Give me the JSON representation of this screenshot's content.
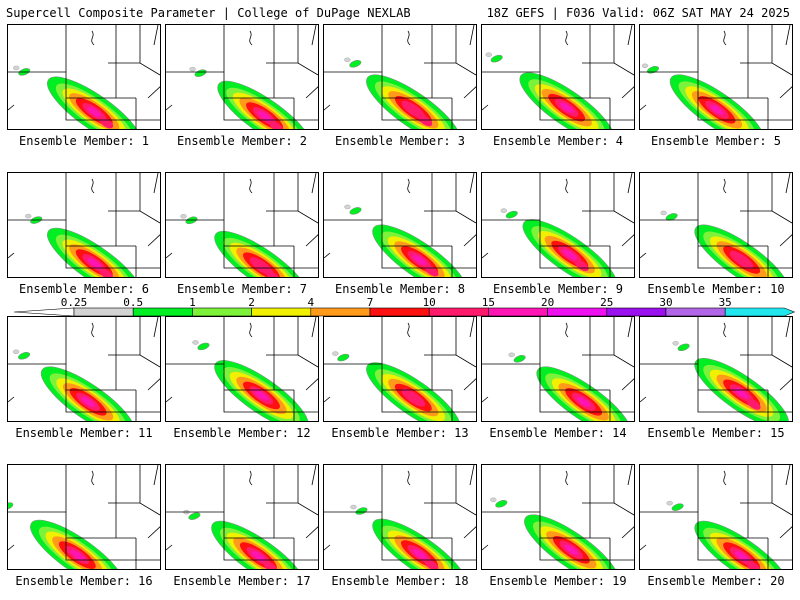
{
  "header": {
    "left_title": "Supercell Composite Parameter | College of DuPage NEXLAB",
    "right_title": "18Z GEFS | F036 Valid: 06Z SAT MAY 24 2025"
  },
  "members_label_prefix": "Ensemble Member: ",
  "members": [
    {
      "label": "Ensemble Member: 1",
      "centroid": [
        0.56,
        0.82
      ],
      "core": 4,
      "cores": 2
    },
    {
      "label": "Ensemble Member: 2",
      "centroid": [
        0.64,
        0.86
      ],
      "core": 4,
      "cores": 2
    },
    {
      "label": "Ensemble Member: 3",
      "centroid": [
        0.58,
        0.8
      ],
      "core": 3,
      "cores": 2
    },
    {
      "label": "Ensemble Member: 4",
      "centroid": [
        0.55,
        0.78
      ],
      "core": 4,
      "cores": 1
    },
    {
      "label": "Ensemble Member: 5",
      "centroid": [
        0.5,
        0.8
      ],
      "core": 4,
      "cores": 1
    },
    {
      "label": "Ensemble Member: 6",
      "centroid": [
        0.56,
        0.85
      ],
      "core": 4,
      "cores": 2
    },
    {
      "label": "Ensemble Member: 7",
      "centroid": [
        0.62,
        0.88
      ],
      "core": 3,
      "cores": 2
    },
    {
      "label": "Ensemble Member: 8",
      "centroid": [
        0.62,
        0.82
      ],
      "core": 4,
      "cores": 2
    },
    {
      "label": "Ensemble Member: 9",
      "centroid": [
        0.57,
        0.77
      ],
      "core": 4,
      "cores": 2
    },
    {
      "label": "Ensemble Member: 10",
      "centroid": [
        0.66,
        0.82
      ],
      "core": 3,
      "cores": 1
    },
    {
      "label": "Ensemble Member: 11",
      "centroid": [
        0.52,
        0.8
      ],
      "core": 4,
      "cores": 1
    },
    {
      "label": "Ensemble Member: 12",
      "centroid": [
        0.62,
        0.74
      ],
      "core": 4,
      "cores": 1
    },
    {
      "label": "Ensemble Member: 13",
      "centroid": [
        0.58,
        0.76
      ],
      "core": 3,
      "cores": 1
    },
    {
      "label": "Ensemble Member: 14",
      "centroid": [
        0.66,
        0.8
      ],
      "core": 4,
      "cores": 1
    },
    {
      "label": "Ensemble Member: 15",
      "centroid": [
        0.66,
        0.72
      ],
      "core": 4,
      "cores": 2
    },
    {
      "label": "Ensemble Member: 16",
      "centroid": [
        0.45,
        0.85
      ],
      "core": 4,
      "cores": 1
    },
    {
      "label": "Ensemble Member: 17",
      "centroid": [
        0.6,
        0.86
      ],
      "core": 4,
      "cores": 2
    },
    {
      "label": "Ensemble Member: 18",
      "centroid": [
        0.62,
        0.84
      ],
      "core": 4,
      "cores": 2
    },
    {
      "label": "Ensemble Member: 19",
      "centroid": [
        0.58,
        0.8
      ],
      "core": 4,
      "cores": 1
    },
    {
      "label": "Ensemble Member: 20",
      "centroid": [
        0.66,
        0.86
      ],
      "core": 4,
      "cores": 2
    }
  ],
  "legend": {
    "ticks": [
      "0.25",
      "0.5",
      "1",
      "2",
      "4",
      "7",
      "10",
      "15",
      "20",
      "25",
      "30",
      "35"
    ],
    "colors": [
      "#d3d3d3",
      "#00ee22",
      "#7cf23a",
      "#f0f000",
      "#ff9a1a",
      "#ff1010",
      "#ff1a6c",
      "#ff14b4",
      "#ee10ee",
      "#9a10ee",
      "#b066e6",
      "#22e6ee"
    ]
  }
}
